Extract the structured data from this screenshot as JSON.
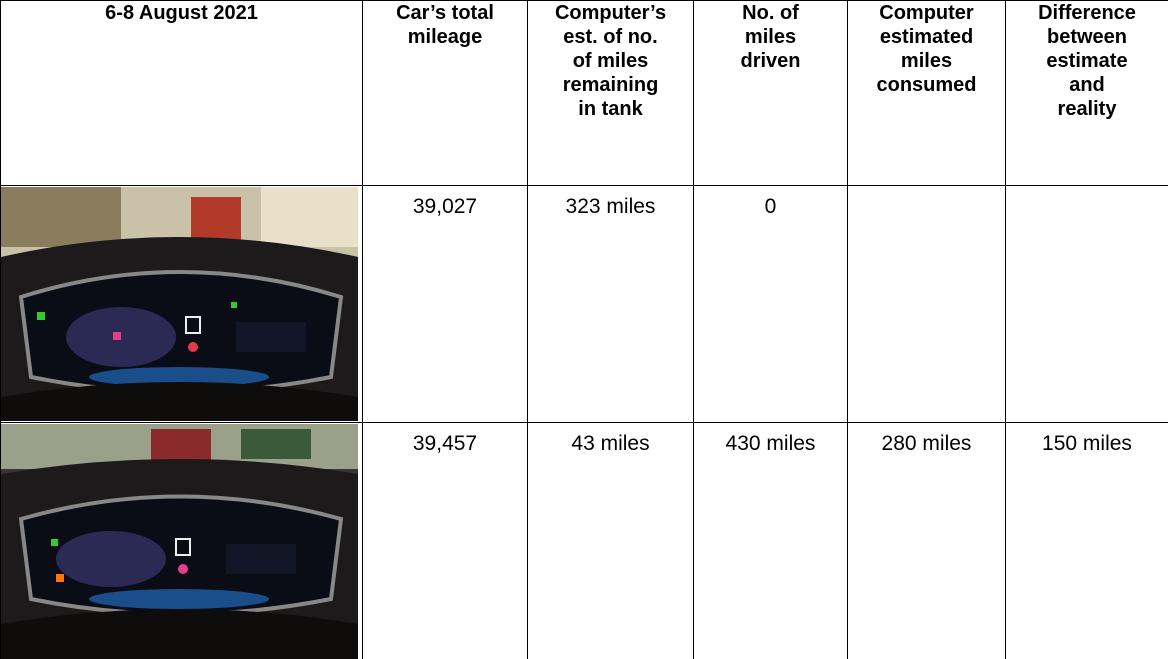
{
  "header": {
    "columns": [
      [
        "6-8 August 2021"
      ],
      [
        "Car’s total",
        "mileage"
      ],
      [
        "Computer’s",
        "est. of no.",
        "of miles",
        "remaining",
        "in tank"
      ],
      [
        "No. of",
        "miles",
        "driven"
      ],
      [
        "Computer",
        "estimated",
        "miles",
        "consumed"
      ],
      [
        "Difference",
        "between",
        "estimate",
        "and",
        "reality"
      ]
    ]
  },
  "table": {
    "rows": [
      {
        "mileage": "39,027",
        "remaining": "323 miles",
        "driven": "0"
      },
      {
        "mileage": "39,457",
        "remaining": "43 miles",
        "driven": "430 miles",
        "consumed": "280 miles",
        "difference": "150 miles"
      }
    ]
  }
}
